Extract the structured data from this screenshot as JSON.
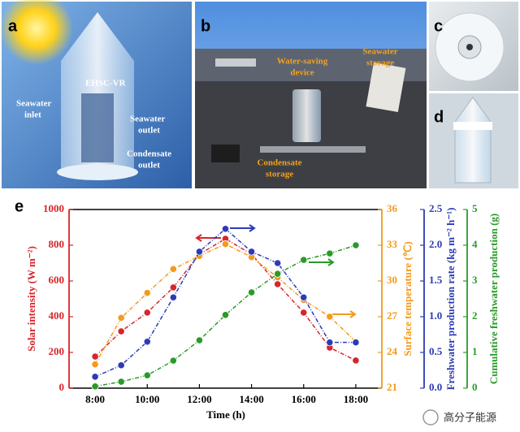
{
  "panels": [
    {
      "label": "a",
      "annotations": [
        [
          "EHSC-VR"
        ],
        [
          "Seawater",
          "inlet"
        ],
        [
          "Seawater",
          "outlet"
        ],
        [
          "Condensate",
          "outlet"
        ]
      ]
    },
    {
      "label": "b",
      "annotations": [
        [
          "Water-saving",
          "device"
        ],
        [
          "Seawater",
          "storage"
        ],
        [
          "Condensate",
          "storage"
        ]
      ]
    },
    {
      "label": "c"
    },
    {
      "label": "d"
    }
  ],
  "watermark": "高分子能源",
  "chart_data": {
    "type": "line",
    "label": "e",
    "xlabel": "Time (h)",
    "x": [
      8,
      9,
      10,
      11,
      12,
      13,
      14,
      15,
      16,
      17,
      18
    ],
    "xlim": [
      7,
      19
    ],
    "xticks": [
      {
        "value": 8,
        "label": "8:00"
      },
      {
        "value": 10,
        "label": "10:00"
      },
      {
        "value": 12,
        "label": "12:00"
      },
      {
        "value": 14,
        "label": "14:00"
      },
      {
        "value": 16,
        "label": "16:00"
      },
      {
        "value": 18,
        "label": "18:00"
      }
    ],
    "ylabel": "Solar intensity (W m⁻²)",
    "ylim": [
      0,
      1000
    ],
    "yticks": [
      0,
      200,
      400,
      600,
      800,
      1000
    ],
    "y2label": "Surface temperature (℃)",
    "y2lim": [
      21,
      36
    ],
    "y2ticks": [
      21,
      24,
      27,
      30,
      33,
      36
    ],
    "y3label": "Freshwater production rate (kg m⁻² h⁻¹)",
    "y3lim": [
      0,
      2.5
    ],
    "y3ticks": [
      {
        "value": 0,
        "label": "0.0"
      },
      0.5,
      {
        "value": 1,
        "label": "1.0"
      },
      1.5,
      {
        "value": 2,
        "label": "2.0"
      },
      2.5
    ],
    "y4label": "Cumulative freshwater production (g)",
    "y4lim": [
      0,
      5
    ],
    "y4ticks": [
      0,
      1,
      2,
      3,
      4,
      5
    ],
    "series": [
      {
        "axis": "y",
        "color": "#d7262b",
        "values": [
          177,
          318,
          423,
          564,
          750,
          836,
          750,
          582,
          423,
          227,
          155
        ]
      },
      {
        "axis": "y2",
        "color": "#f39a1e",
        "values": [
          23.0,
          26.9,
          29.0,
          31.0,
          32.1,
          33.1,
          32.0,
          30.3,
          28.4,
          27.0,
          24.9
        ]
      },
      {
        "axis": "y3",
        "color": "#2c3bb5",
        "values": [
          0.16,
          0.32,
          0.65,
          1.27,
          1.91,
          2.23,
          1.91,
          1.75,
          1.27,
          0.64,
          0.64
        ]
      },
      {
        "axis": "y4",
        "color": "#2a9a2a",
        "values": [
          0.05,
          0.18,
          0.36,
          0.77,
          1.34,
          2.05,
          2.68,
          3.2,
          3.59,
          3.77,
          4.0
        ]
      }
    ]
  }
}
